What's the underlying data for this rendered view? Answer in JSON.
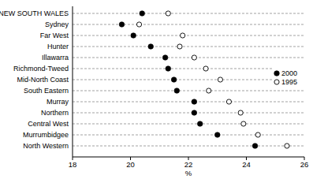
{
  "chart_data": {
    "type": "dot",
    "orientation": "horizontal",
    "categories": [
      "NEW SOUTH WALES",
      "Sydney",
      "Far West",
      "Hunter",
      "Illawarra",
      "Richmond-Tweed",
      "Mid-North Coast",
      "South Eastern",
      "Murray",
      "Northern",
      "Central West",
      "Murrumbidgee",
      "North Western"
    ],
    "series": [
      {
        "name": "2000",
        "color": "#000000",
        "marker": "filled",
        "values": [
          20.4,
          19.7,
          20.1,
          20.7,
          21.2,
          21.3,
          21.5,
          21.6,
          22.2,
          22.2,
          22.4,
          23.0,
          24.3
        ]
      },
      {
        "name": "1995",
        "color": "#000000",
        "marker": "open",
        "values": [
          21.3,
          20.3,
          21.8,
          21.7,
          22.2,
          22.6,
          23.1,
          22.7,
          23.4,
          23.8,
          23.9,
          24.4,
          25.4
        ]
      }
    ],
    "x_label": "%",
    "xlim": [
      18,
      26
    ],
    "xticks": [
      18,
      20,
      22,
      24,
      26
    ],
    "grid": true,
    "legend": "right"
  }
}
